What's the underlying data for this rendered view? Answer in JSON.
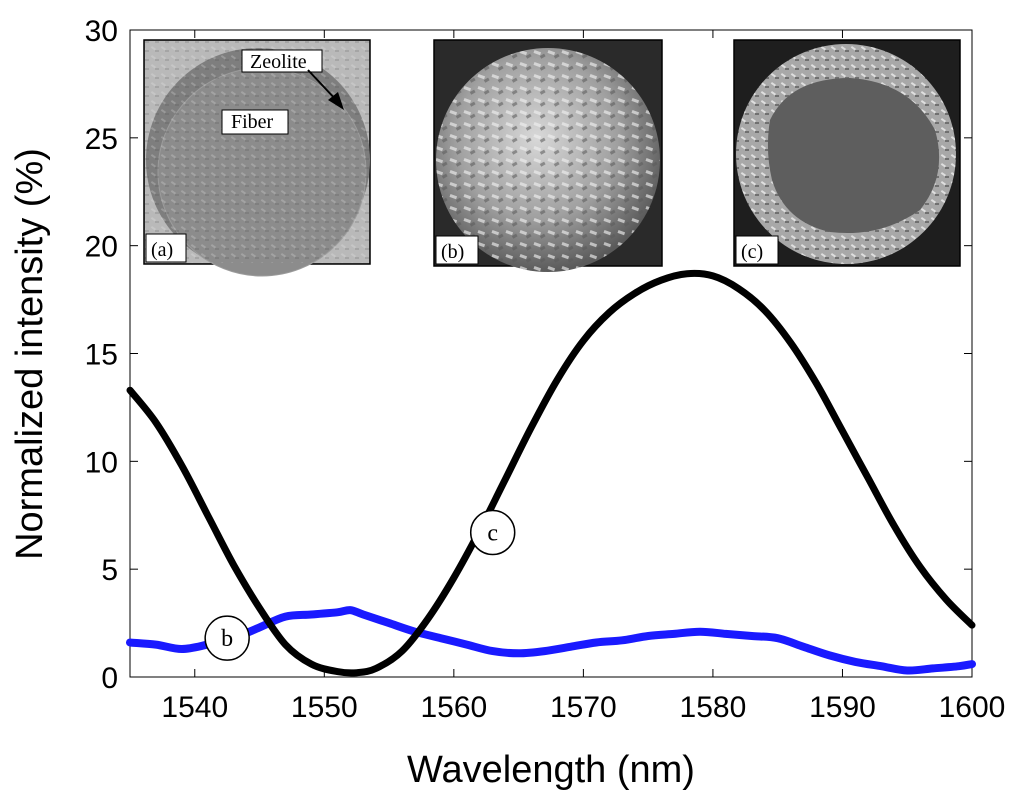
{
  "chart_data": {
    "type": "line",
    "title": "",
    "xlabel": "Wavelength (nm)",
    "ylabel": "Normalized intensity (%)",
    "xlim": [
      1535,
      1600
    ],
    "ylim": [
      0,
      30
    ],
    "x_ticks": [
      1540,
      1550,
      1560,
      1570,
      1580,
      1590,
      1600
    ],
    "y_ticks": [
      0,
      5,
      10,
      15,
      20,
      25,
      30
    ],
    "grid": false,
    "legend": "none",
    "series": [
      {
        "name": "b",
        "color": "#1a1aff",
        "x": [
          1535,
          1537,
          1539,
          1541,
          1543,
          1545,
          1547,
          1549,
          1551,
          1552,
          1553,
          1555,
          1557,
          1559,
          1561,
          1563,
          1565,
          1567,
          1569,
          1571,
          1573,
          1575,
          1577,
          1579,
          1581,
          1583,
          1585,
          1587,
          1589,
          1591,
          1593,
          1595,
          1597,
          1599,
          1600
        ],
        "y": [
          1.6,
          1.5,
          1.3,
          1.5,
          1.8,
          2.3,
          2.8,
          2.9,
          3.0,
          3.1,
          2.9,
          2.5,
          2.1,
          1.8,
          1.5,
          1.2,
          1.1,
          1.2,
          1.4,
          1.6,
          1.7,
          1.9,
          2.0,
          2.1,
          2.0,
          1.9,
          1.8,
          1.4,
          1.0,
          0.7,
          0.5,
          0.3,
          0.4,
          0.5,
          0.6
        ]
      },
      {
        "name": "c",
        "color": "#000000",
        "x": [
          1535,
          1537,
          1539,
          1541,
          1543,
          1545,
          1547,
          1549,
          1551,
          1552.5,
          1554,
          1556,
          1558,
          1560,
          1562,
          1564,
          1566,
          1568,
          1570,
          1572,
          1574,
          1576,
          1578,
          1580,
          1582,
          1584,
          1586,
          1588,
          1590,
          1592,
          1594,
          1596,
          1598,
          1600
        ],
        "y": [
          13.3,
          11.8,
          9.8,
          7.5,
          5.2,
          3.2,
          1.5,
          0.6,
          0.25,
          0.2,
          0.4,
          1.2,
          2.7,
          4.6,
          6.8,
          9.2,
          11.6,
          13.8,
          15.6,
          16.9,
          17.8,
          18.4,
          18.7,
          18.6,
          18.0,
          17.0,
          15.5,
          13.6,
          11.4,
          9.2,
          7.0,
          5.1,
          3.6,
          2.4
        ]
      }
    ],
    "annotations": [
      {
        "text": "b",
        "x": 1542.5,
        "y": 1.8
      },
      {
        "text": "c",
        "x": 1563,
        "y": 6.7
      }
    ],
    "insets": [
      {
        "panel_label": "(a)",
        "labels": [
          "Zeolite",
          "Fiber"
        ]
      },
      {
        "panel_label": "(b)",
        "labels": []
      },
      {
        "panel_label": "(c)",
        "labels": []
      }
    ]
  }
}
